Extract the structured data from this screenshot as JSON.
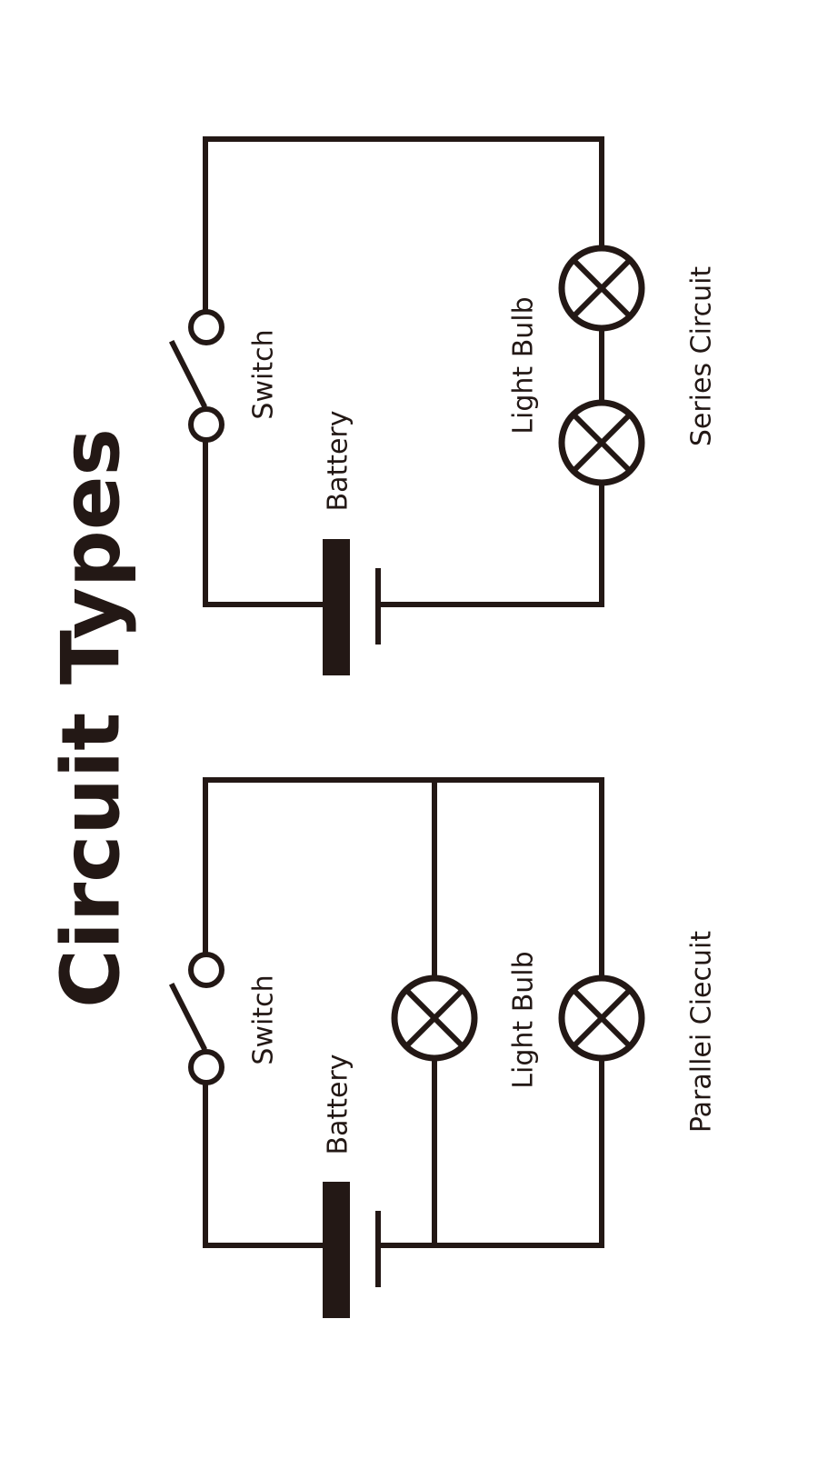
{
  "title": "Circuit Types",
  "series_circuit": {
    "caption": "Series Circuit",
    "switch_label": "Switch",
    "battery_label": "Battery",
    "bulb_label": "Light Bulb"
  },
  "parallel_circuit": {
    "caption": "Parallei Ciecuit",
    "switch_label": "Switch",
    "battery_label": "Battery",
    "bulb_label": "Light Bulb"
  },
  "colors": {
    "ink": "#231815",
    "background": "#ffffff"
  }
}
